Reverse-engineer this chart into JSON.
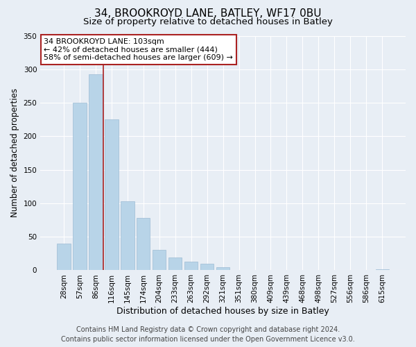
{
  "title": "34, BROOKROYD LANE, BATLEY, WF17 0BU",
  "subtitle": "Size of property relative to detached houses in Batley",
  "xlabel": "Distribution of detached houses by size in Batley",
  "ylabel": "Number of detached properties",
  "bar_labels": [
    "28sqm",
    "57sqm",
    "86sqm",
    "116sqm",
    "145sqm",
    "174sqm",
    "204sqm",
    "233sqm",
    "263sqm",
    "292sqm",
    "321sqm",
    "351sqm",
    "380sqm",
    "409sqm",
    "439sqm",
    "468sqm",
    "498sqm",
    "527sqm",
    "556sqm",
    "586sqm",
    "615sqm"
  ],
  "bar_values": [
    40,
    250,
    293,
    225,
    103,
    78,
    30,
    19,
    13,
    10,
    5,
    0,
    0,
    0,
    0,
    0,
    0,
    0,
    0,
    0,
    2
  ],
  "bar_color": "#b8d4e8",
  "bar_edge_color": "#9dbcd4",
  "vline_color": "#aa2222",
  "vline_x": 2.5,
  "annotation_line1": "34 BROOKROYD LANE: 103sqm",
  "annotation_line2": "← 42% of detached houses are smaller (444)",
  "annotation_line3": "58% of semi-detached houses are larger (609) →",
  "annotation_box_facecolor": "#ffffff",
  "annotation_box_edgecolor": "#aa2222",
  "ylim": [
    0,
    350
  ],
  "yticks": [
    0,
    50,
    100,
    150,
    200,
    250,
    300,
    350
  ],
  "footer_line1": "Contains HM Land Registry data © Crown copyright and database right 2024.",
  "footer_line2": "Contains public sector information licensed under the Open Government Licence v3.0.",
  "bg_color": "#e8eef5",
  "plot_bg_color": "#e8eef5",
  "grid_color": "#ffffff",
  "title_fontsize": 11,
  "subtitle_fontsize": 9.5,
  "xlabel_fontsize": 9,
  "ylabel_fontsize": 8.5,
  "tick_fontsize": 7.5,
  "annotation_fontsize": 8,
  "footer_fontsize": 7
}
